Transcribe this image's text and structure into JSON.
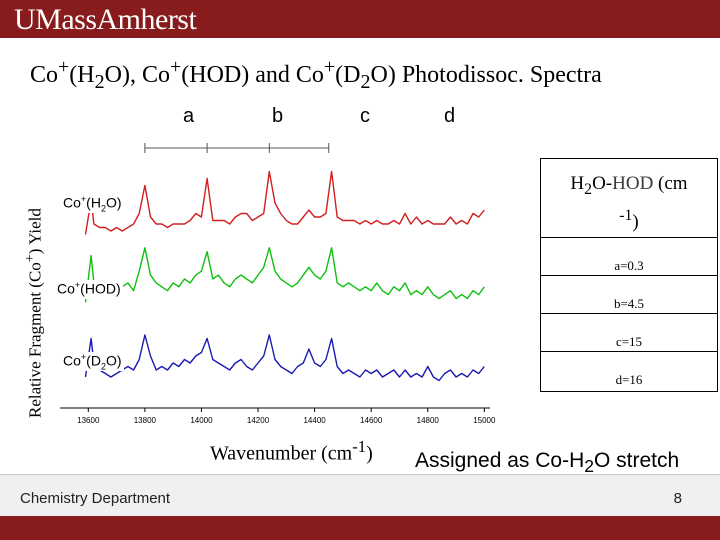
{
  "header": {
    "logo_text": "UMassAmherst",
    "brand_color": "#881c1c"
  },
  "title": {
    "base": "Co",
    "sup1": "+",
    "t2": "(H",
    "sub1": "2",
    "t3": "O), Co",
    "sup2": "+",
    "t4": "(HOD) and Co",
    "sup3": "+",
    "t5": "(D",
    "sub2": "2",
    "t6": "O) Photodissoc. Spectra"
  },
  "axis_y": {
    "t1": "Relative Fragment (Co",
    "sup": "+",
    "t2": ") Yield"
  },
  "axis_x": {
    "t1": "Wavenumber (cm",
    "sup": "-1",
    "t2": ")"
  },
  "peak_labels": [
    "a",
    "b",
    "c",
    "d"
  ],
  "series_labels": [
    {
      "t1": "Co",
      "sup": "+",
      "t2": "(H",
      "sub": "2",
      "t3": "O)",
      "color": "#d02020"
    },
    {
      "t1": "Co",
      "sup": "+",
      "t2": "(HOD)",
      "sub": "",
      "t3": "",
      "color": "#10c010"
    },
    {
      "t1": "Co",
      "sup": "+",
      "t2": "(D",
      "sub": "2",
      "t3": "O)",
      "color": "#1a1ab0"
    }
  ],
  "legend": {
    "t1": "H",
    "sub": "2",
    "t2": "O-",
    "hod": "HOD",
    "t3": " (cm",
    "sup": "-1",
    "t4": ")",
    "rows": [
      "a=0.3",
      "b=4.5",
      "c=15",
      "d=16"
    ]
  },
  "assigned": {
    "t1": "Assigned as Co-H",
    "sub": "2",
    "t2": "O stretch"
  },
  "footer": {
    "department": "Chemistry Department",
    "page": "8"
  },
  "chart_data": {
    "type": "line",
    "x_ticks": [
      13600,
      13800,
      14000,
      14200,
      14400,
      14600,
      14800,
      15000
    ],
    "xlim": [
      13500,
      15020
    ],
    "peak_positions": [
      {
        "label": "a",
        "x": 13800
      },
      {
        "label": "b",
        "x": 14020
      },
      {
        "label": "c",
        "x": 14240
      },
      {
        "label": "d",
        "x": 14450
      }
    ],
    "series": [
      {
        "name": "Co+(H2O)",
        "color": "#d02020",
        "x": [
          13590,
          13610,
          13620,
          13640,
          13660,
          13680,
          13700,
          13720,
          13740,
          13760,
          13780,
          13800,
          13820,
          13840,
          13860,
          13880,
          13900,
          13920,
          13940,
          13960,
          13980,
          14000,
          14020,
          14040,
          14060,
          14080,
          14100,
          14120,
          14140,
          14160,
          14180,
          14200,
          14220,
          14240,
          14260,
          14280,
          14300,
          14320,
          14340,
          14360,
          14380,
          14400,
          14420,
          14440,
          14460,
          14480,
          14500,
          14520,
          14540,
          14560,
          14580,
          14600,
          14620,
          14640,
          14660,
          14680,
          14700,
          14720,
          14740,
          14760,
          14780,
          14800,
          14820,
          14840,
          14860,
          14880,
          14900,
          14920,
          14940,
          14960,
          14980,
          15000
        ],
        "y": [
          0.05,
          0.55,
          0.2,
          0.15,
          0.15,
          0.1,
          0.15,
          0.1,
          0.15,
          0.2,
          0.35,
          0.75,
          0.3,
          0.2,
          0.2,
          0.15,
          0.2,
          0.2,
          0.2,
          0.25,
          0.35,
          0.3,
          0.85,
          0.25,
          0.25,
          0.25,
          0.2,
          0.3,
          0.35,
          0.35,
          0.25,
          0.3,
          0.35,
          0.95,
          0.5,
          0.35,
          0.25,
          0.2,
          0.2,
          0.3,
          0.4,
          0.3,
          0.3,
          0.35,
          0.95,
          0.3,
          0.25,
          0.25,
          0.25,
          0.2,
          0.25,
          0.2,
          0.25,
          0.2,
          0.2,
          0.25,
          0.2,
          0.35,
          0.2,
          0.3,
          0.2,
          0.25,
          0.2,
          0.2,
          0.2,
          0.3,
          0.2,
          0.25,
          0.2,
          0.35,
          0.3,
          0.4
        ]
      },
      {
        "name": "Co+(HOD)",
        "color": "#10c010",
        "x": [
          13590,
          13610,
          13620,
          13640,
          13660,
          13680,
          13700,
          13720,
          13740,
          13760,
          13780,
          13800,
          13820,
          13840,
          13860,
          13880,
          13900,
          13920,
          13940,
          13960,
          13980,
          14000,
          14020,
          14040,
          14060,
          14080,
          14100,
          14120,
          14140,
          14160,
          14180,
          14200,
          14220,
          14240,
          14260,
          14280,
          14300,
          14320,
          14340,
          14360,
          14380,
          14400,
          14420,
          14440,
          14460,
          14480,
          14500,
          14520,
          14540,
          14560,
          14580,
          14600,
          14620,
          14640,
          14660,
          14680,
          14700,
          14720,
          14740,
          14760,
          14780,
          14800,
          14820,
          14840,
          14860,
          14880,
          14900,
          14920,
          14940,
          14960,
          14980,
          15000
        ],
        "y": [
          0.2,
          0.8,
          0.45,
          0.4,
          0.3,
          0.35,
          0.3,
          0.4,
          0.45,
          0.35,
          0.6,
          0.9,
          0.55,
          0.45,
          0.4,
          0.35,
          0.45,
          0.4,
          0.5,
          0.45,
          0.55,
          0.6,
          0.85,
          0.5,
          0.55,
          0.45,
          0.4,
          0.5,
          0.55,
          0.5,
          0.45,
          0.55,
          0.65,
          0.9,
          0.6,
          0.5,
          0.45,
          0.4,
          0.45,
          0.55,
          0.65,
          0.55,
          0.5,
          0.6,
          0.9,
          0.45,
          0.4,
          0.45,
          0.4,
          0.35,
          0.4,
          0.35,
          0.45,
          0.35,
          0.3,
          0.4,
          0.35,
          0.45,
          0.3,
          0.35,
          0.3,
          0.4,
          0.3,
          0.25,
          0.3,
          0.35,
          0.25,
          0.3,
          0.25,
          0.35,
          0.3,
          0.4
        ]
      },
      {
        "name": "Co+(D2O)",
        "color": "#1a1ab0",
        "x": [
          13590,
          13610,
          13620,
          13640,
          13660,
          13680,
          13700,
          13720,
          13740,
          13760,
          13780,
          13800,
          13820,
          13840,
          13860,
          13880,
          13900,
          13920,
          13940,
          13960,
          13980,
          14000,
          14020,
          14040,
          14060,
          14080,
          14100,
          14120,
          14140,
          14160,
          14180,
          14200,
          14220,
          14240,
          14260,
          14280,
          14300,
          14320,
          14340,
          14360,
          14380,
          14400,
          14420,
          14440,
          14460,
          14480,
          14500,
          14520,
          14540,
          14560,
          14580,
          14600,
          14620,
          14640,
          14660,
          14680,
          14700,
          14720,
          14740,
          14760,
          14780,
          14800,
          14820,
          14840,
          14860,
          14880,
          14900,
          14920,
          14940,
          14960,
          14980,
          15000
        ],
        "y": [
          0.3,
          0.85,
          0.5,
          0.4,
          0.35,
          0.3,
          0.35,
          0.4,
          0.45,
          0.4,
          0.55,
          0.9,
          0.6,
          0.4,
          0.45,
          0.4,
          0.5,
          0.45,
          0.55,
          0.5,
          0.6,
          0.65,
          0.85,
          0.55,
          0.5,
          0.45,
          0.4,
          0.5,
          0.55,
          0.45,
          0.4,
          0.5,
          0.6,
          0.9,
          0.55,
          0.45,
          0.4,
          0.35,
          0.45,
          0.5,
          0.7,
          0.5,
          0.45,
          0.55,
          0.85,
          0.45,
          0.35,
          0.4,
          0.35,
          0.3,
          0.4,
          0.35,
          0.4,
          0.3,
          0.35,
          0.4,
          0.3,
          0.4,
          0.3,
          0.35,
          0.3,
          0.45,
          0.3,
          0.25,
          0.35,
          0.4,
          0.3,
          0.35,
          0.3,
          0.4,
          0.35,
          0.45
        ]
      }
    ]
  }
}
